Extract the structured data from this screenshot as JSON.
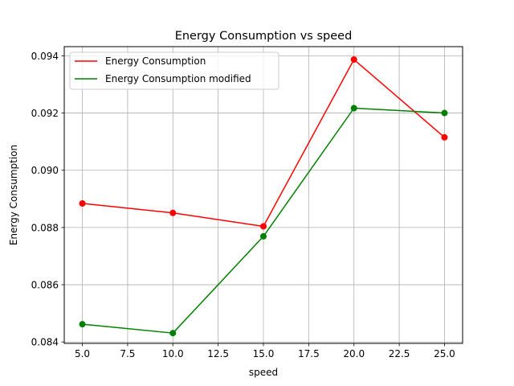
{
  "chart_data": {
    "type": "line",
    "title": "Energy Consumption vs speed",
    "xlabel": "speed",
    "ylabel": "Energy Consumption",
    "x": [
      5,
      10,
      15,
      20,
      25
    ],
    "series": [
      {
        "name": "Energy Consumption",
        "color": "#ff0000",
        "values": [
          0.08884,
          0.08851,
          0.08804,
          0.09387,
          0.09115
        ]
      },
      {
        "name": "Energy Consumption modified",
        "color": "#008000",
        "values": [
          0.08462,
          0.08431,
          0.08769,
          0.09217,
          0.092
        ]
      }
    ],
    "xlim": [
      4.0,
      26.0
    ],
    "ylim": [
      0.08395,
      0.09432
    ],
    "xticks": [
      5.0,
      7.5,
      10.0,
      12.5,
      15.0,
      17.5,
      20.0,
      22.5,
      25.0
    ],
    "xtick_labels": [
      "5.0",
      "7.5",
      "10.0",
      "12.5",
      "15.0",
      "17.5",
      "20.0",
      "22.5",
      "25.0"
    ],
    "yticks": [
      0.084,
      0.086,
      0.088,
      0.09,
      0.092,
      0.094
    ],
    "ytick_labels": [
      "0.084",
      "0.086",
      "0.088",
      "0.090",
      "0.092",
      "0.094"
    ],
    "grid": true,
    "legend_position": "top-left",
    "markers": true
  }
}
